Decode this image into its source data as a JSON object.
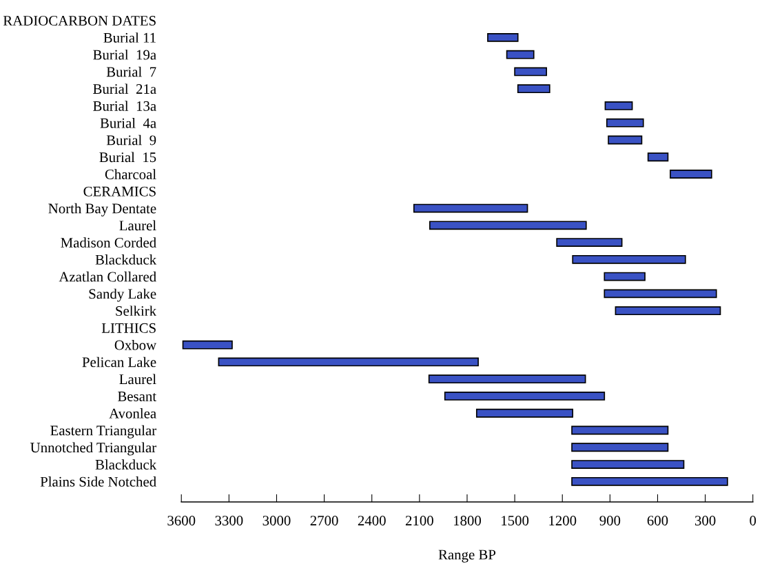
{
  "chart_data": {
    "type": "bar",
    "orientation": "horizontal",
    "xlabel": "Range BP",
    "color": "#3a52c4",
    "categories": [
      "RADIOCARBON DATES",
      "Burial 11",
      "Burial  19a",
      "Burial  7",
      "Burial  21a",
      "Burial  13a",
      "Burial  4a",
      "Burial  9",
      "Burial  15",
      "Charcoal",
      "CERAMICS",
      "North Bay Dentate",
      "Laurel",
      "Madison Corded",
      "Blackduck",
      "Azatlan Collared",
      "Sandy Lake",
      "Selkirk",
      "LITHICS",
      "Oxbow",
      "Pelican Lake",
      "Laurel",
      "Besant",
      "Avonlea",
      "Eastern Triangular",
      "Unnotched Triangular",
      "Blackduck",
      "Plains Side Notched"
    ],
    "base": [
      null,
      1480,
      1380,
      1300,
      1280,
      760,
      690,
      700,
      535,
      260,
      null,
      1420,
      1050,
      825,
      425,
      680,
      230,
      205,
      null,
      3280,
      1730,
      1055,
      935,
      1135,
      535,
      535,
      435,
      160
    ],
    "values": [
      null,
      190,
      170,
      200,
      200,
      170,
      230,
      210,
      125,
      260,
      null,
      715,
      985,
      410,
      710,
      255,
      705,
      660,
      null,
      310,
      1635,
      985,
      1005,
      605,
      605,
      605,
      705,
      980
    ],
    "xlim": [
      3600,
      0
    ],
    "xticks": [
      3600,
      3300,
      3000,
      2700,
      2400,
      2100,
      1800,
      1500,
      1200,
      900,
      600,
      300,
      0
    ],
    "grid": false,
    "legend": false
  }
}
